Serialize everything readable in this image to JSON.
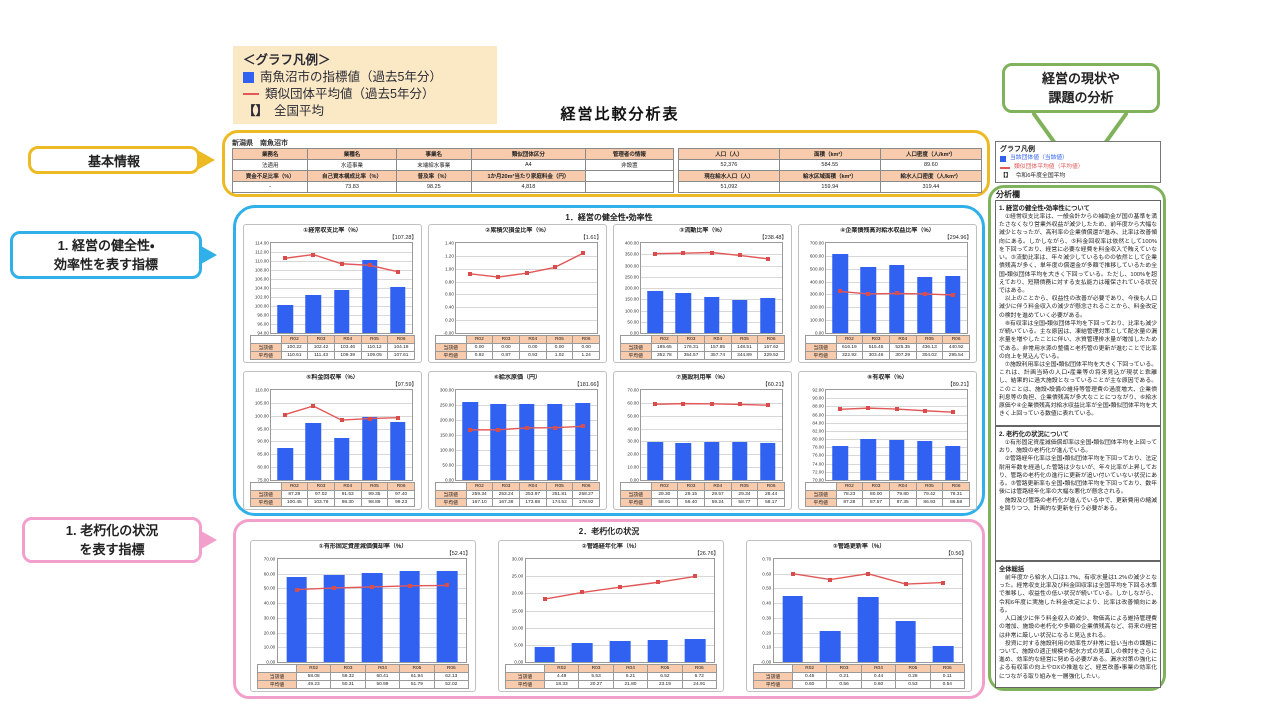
{
  "graph_legend": {
    "title": "＜グラフ凡例＞",
    "bracket_glyph": "【】",
    "items": [
      {
        "marker": "square",
        "label": "南魚沼市の指標値（過去5年分）"
      },
      {
        "marker": "line",
        "label": "類似団体平均値（過去5年分）"
      },
      {
        "marker": "bracket",
        "label": "全国平均"
      }
    ]
  },
  "callouts": {
    "basic_info": "基本情報",
    "section1_line1": "1. 経営の健全性・",
    "section1_line2": "効率性を表す指標",
    "section2_line1": "1. 老朽化の状況",
    "section2_line2": "を表す指標",
    "analysis_line1": "経営の現状や",
    "analysis_line2": "課題の分析"
  },
  "document": {
    "title": "経営比較分析表",
    "municipality": "新潟県　南魚沼市",
    "info_left": {
      "col_widths": [
        "17%",
        "20%",
        "17%",
        "26%",
        "20%"
      ],
      "rows": [
        {
          "type": "header",
          "cells": [
            "業務名",
            "業種名",
            "事業名",
            "類似団体区分",
            "管理者の情報"
          ]
        },
        {
          "type": "value",
          "cells": [
            "法適用",
            "水道事業",
            "末端給水事業",
            "A4",
            "非設置"
          ]
        },
        {
          "type": "header",
          "cells": [
            "資金不足比率（%）",
            "自己資本構成比率（%）",
            "普及率（%）",
            "1か月20m³当たり家庭料金（円）",
            ""
          ]
        },
        {
          "type": "value",
          "cells": [
            "-",
            "73.83",
            "98.25",
            "4,818",
            ""
          ]
        }
      ]
    },
    "info_right": {
      "col_widths": [
        "33.3%",
        "33.3%",
        "33.4%"
      ],
      "rows": [
        {
          "type": "header",
          "cells": [
            "人口（人）",
            "面積（km²）",
            "人口密度（人/km²）"
          ]
        },
        {
          "type": "value",
          "cells": [
            "52,376",
            "584.55",
            "89.60"
          ]
        },
        {
          "type": "header",
          "cells": [
            "現在給水人口（人）",
            "給水区域面積（km²）",
            "給水人口密度（人/km²）"
          ]
        },
        {
          "type": "value",
          "cells": [
            "51,092",
            "159.94",
            "319.44"
          ]
        }
      ]
    },
    "section1_title": "1．経営の健全性・効率性",
    "section2_title": "2．老朽化の状況"
  },
  "chart_data": [
    {
      "section": 1,
      "type": "bar",
      "title": "①経常収支比率（%）",
      "national": "107.28",
      "ymin": 94,
      "ymax": 114,
      "ystep": 2,
      "categories": [
        "R02",
        "R03",
        "R04",
        "R05",
        "R06"
      ],
      "series": [
        {
          "name": "当該値",
          "values": [
            "100.22",
            "102.42",
            "103.46",
            "110.12",
            "104.19"
          ]
        },
        {
          "name": "平均値",
          "values": [
            "110.61",
            "111.43",
            "109.39",
            "109.05",
            "107.61"
          ]
        }
      ]
    },
    {
      "section": 1,
      "type": "bar",
      "title": "②累積欠損金比率（%）",
      "national": "1.61",
      "ymin": 0,
      "ymax": 1.4,
      "ystep": 0.2,
      "categories": [
        "R02",
        "R03",
        "R04",
        "R05",
        "R06"
      ],
      "series": [
        {
          "name": "当該値",
          "values": [
            "0.00",
            "0.00",
            "0.00",
            "0.00",
            "0.00"
          ]
        },
        {
          "name": "平均値",
          "values": [
            "0.92",
            "0.87",
            "0.93",
            "1.02",
            "1.24"
          ]
        }
      ]
    },
    {
      "section": 1,
      "type": "bar",
      "title": "③流動比率（%）",
      "national": "238.48",
      "ymin": 0,
      "ymax": 400,
      "ystep": 50,
      "categories": [
        "R02",
        "R03",
        "R04",
        "R05",
        "R06"
      ],
      "series": [
        {
          "name": "当該値",
          "values": [
            "185.65",
            "176.31",
            "157.85",
            "148.51",
            "157.62"
          ]
        },
        {
          "name": "平均値",
          "values": [
            "352.78",
            "354.57",
            "357.74",
            "344.89",
            "329.52"
          ]
        }
      ]
    },
    {
      "section": 1,
      "type": "bar",
      "title": "④企業債残高対給水収益比率（%）",
      "national": "294.96",
      "ymin": 0,
      "ymax": 700,
      "ystep": 100,
      "categories": [
        "R02",
        "R03",
        "R04",
        "R05",
        "R06"
      ],
      "series": [
        {
          "name": "当該値",
          "values": [
            "616.19",
            "515.45",
            "525.35",
            "436.13",
            "440.92"
          ]
        },
        {
          "name": "平均値",
          "values": [
            "322.92",
            "303.46",
            "307.29",
            "304.02",
            "295.54"
          ]
        }
      ]
    },
    {
      "section": 1,
      "type": "bar",
      "title": "⑤料金回収率（%）",
      "national": "97.59",
      "ymin": 75,
      "ymax": 110,
      "ystep": 5,
      "categories": [
        "R02",
        "R03",
        "R04",
        "R05",
        "R06"
      ],
      "series": [
        {
          "name": "当該値",
          "values": [
            "87.29",
            "97.02",
            "91.53",
            "99.35",
            "97.40"
          ]
        },
        {
          "name": "平均値",
          "values": [
            "100.45",
            "103.79",
            "98.30",
            "98.89",
            "99.23"
          ]
        }
      ]
    },
    {
      "section": 1,
      "type": "bar",
      "title": "⑥給水原価（円）",
      "national": "181.66",
      "ymin": 0,
      "ymax": 300,
      "ystep": 50,
      "categories": [
        "R02",
        "R03",
        "R04",
        "R05",
        "R06"
      ],
      "series": [
        {
          "name": "当該値",
          "values": [
            "259.34",
            "253.24",
            "253.97",
            "251.81",
            "258.27"
          ]
        },
        {
          "name": "平均値",
          "values": [
            "167.10",
            "167.38",
            "173.68",
            "174.52",
            "178.92"
          ]
        }
      ]
    },
    {
      "section": 1,
      "type": "bar",
      "title": "⑦施設利用率（%）",
      "national": "60.21",
      "ymin": 0,
      "ymax": 70,
      "ystep": 10,
      "categories": [
        "R02",
        "R03",
        "R04",
        "R05",
        "R06"
      ],
      "series": [
        {
          "name": "当該値",
          "values": [
            "29.30",
            "29.15",
            "29.57",
            "29.34",
            "28.44"
          ]
        },
        {
          "name": "平均値",
          "values": [
            "58.91",
            "59.40",
            "59.24",
            "58.77",
            "58.17"
          ]
        }
      ]
    },
    {
      "section": 1,
      "type": "bar",
      "title": "⑧有収率（%）",
      "national": "89.21",
      "ymin": 70,
      "ymax": 92,
      "ystep": 2,
      "categories": [
        "R02",
        "R03",
        "R04",
        "R05",
        "R06"
      ],
      "series": [
        {
          "name": "当該値",
          "values": [
            "78.23",
            "80.00",
            "79.80",
            "79.42",
            "78.31"
          ]
        },
        {
          "name": "平均値",
          "values": [
            "87.28",
            "87.57",
            "87.35",
            "86.93",
            "86.58"
          ]
        }
      ]
    },
    {
      "section": 2,
      "type": "bar",
      "title": "①有形固定資産減価償却率（%）",
      "national": "52.41",
      "ymin": 0,
      "ymax": 70,
      "ystep": 10,
      "categories": [
        "R02",
        "R03",
        "R04",
        "R05",
        "R06"
      ],
      "series": [
        {
          "name": "当該値",
          "values": [
            "58.08",
            "59.32",
            "60.41",
            "61.94",
            "62.13"
          ]
        },
        {
          "name": "平均値",
          "values": [
            "49.23",
            "50.31",
            "50.99",
            "51.79",
            "52.02"
          ]
        }
      ]
    },
    {
      "section": 2,
      "type": "bar",
      "title": "②管路経年化率（%）",
      "national": "26.76",
      "ymin": 0,
      "ymax": 30,
      "ystep": 5,
      "categories": [
        "R02",
        "R03",
        "R04",
        "R05",
        "R06"
      ],
      "series": [
        {
          "name": "当該値",
          "values": [
            "4.49",
            "5.53",
            "6.21",
            "6.52",
            "6.72"
          ]
        },
        {
          "name": "平均値",
          "values": [
            "18.33",
            "20.27",
            "21.80",
            "23.19",
            "24.91"
          ]
        }
      ]
    },
    {
      "section": 2,
      "type": "bar",
      "title": "③管路更新率（%）",
      "national": "0.56",
      "ymin": 0,
      "ymax": 0.7,
      "ystep": 0.1,
      "categories": [
        "R02",
        "R03",
        "R04",
        "R05",
        "R06"
      ],
      "series": [
        {
          "name": "当該値",
          "values": [
            "0.45",
            "0.21",
            "0.44",
            "0.28",
            "0.11"
          ]
        },
        {
          "name": "平均値",
          "values": [
            "0.60",
            "0.56",
            "0.60",
            "0.53",
            "0.54"
          ]
        }
      ]
    }
  ],
  "analysis_panel": {
    "legend_title": "グラフ凡例",
    "legend_items": [
      {
        "marker": "square",
        "label": "当該団体値（当該値）",
        "color": "#3161f1"
      },
      {
        "marker": "line",
        "label": "類似団体平均値（平均値）",
        "color": "#e25858"
      },
      {
        "marker": "bracket",
        "label": "令和6年度全国平均",
        "color": "#222222"
      }
    ],
    "bracket_glyph": "【】",
    "header": "分析欄",
    "sections": [
      {
        "title": "1. 経営の健全性・効率性について",
        "body": "　①経常収支比率は、一般会計からの補助金が国の基準を満たさなくなり営業外収益が減少したため、前年度から大幅な減少となったが、高利率の企業債償還が進み、比率は改善傾向にある。しかしながら、⑤料金回収率は依然として100%を下回っており、経営に必要な経費を料金収入で賄えていない。③流動比率は、年々減少しているものの依然として企業債残高が多く、単年度の償還金が多額で推移しているため全国・類似団体平均を大きく下回っている。ただし、100%を超えており、短期債務に対する支払能力は確保されている状況ではある。\n　以上のことから、収益性の改善が必要であり、今後も人口減少に伴う料金収入の減少が懸念されることから、料金改定の検討を進めていく必要がある。\n　⑧有収率は全国・類似団体平均を下回っており、比率も減少が続いている。主な原因は、凍結管理対策として配水量の漏水量を増やしたことに伴い、水質管理排水量が増加したためである。非常用水源の整備と老朽管の更新が進むことで比率の向上を見込んでいる。\n　⑦施設利用率は全国・類似団体平均を大きく下回っている。これは、計画当時の人口・産業等の将来見込が現状と乖離し、結果的に過大施設となっていることが主な原因である。このことは、施設・設備の維持等管理費の過度増大、企業債利息等の負担、企業債残高が多大なことにつながり、⑥給水原価や④企業債残高対給水収益比率が全国・類似団体平均を大きく上回っている数値に表れている。"
      },
      {
        "title": "2. 老朽化の状況について",
        "body": "　①有形固定資産減価償却率は全国・類似団体平均を上回っており、施設の老朽化が進んでいる。\n　②管路経年化率は全国・類似団体平均を下回っており、法定耐用年数を経過した管路は少ないが、年々比率が上昇しており、管路の老朽化の進行に更新が追い付いていない状況にある。③管路更新率も全国・類似団体平均を下回っており、数年後には管路経年化率の大幅な悪化が懸念される。\n　施設及び管路の老朽化が進んでいる中で、更新費用の縮減を図りつつ、計画的な更新を行う必要がある。"
      },
      {
        "title": "全体総括",
        "body": "　前年度から給水人口は1.7%、有収水量は1.2%の減少となった。経常収支比率及び料金回収率は全国平均を下回る水準で推移し、収益性の低い状況が続いている。しかしながら、令和6年度に実施した料金改定により、比率は改善傾向にある。\n　人口減少に伴う料金収入の減少、物価高による維持管理費の増加、施設の老朽化や多額の企業債残高など、将来の経営は非常に厳しい状況になると見込まれる。\n　投資に対する施設利用の効率性が非常に低い当市の課題について、施設の適正規模や配水方式の見直しの検討をさらに進め、効率的な経営に努める必要がある。漏水対策の強化による有収率の向上やDXの推進など、経営改善・事業の効率化につながる取り組みを一層強化したい。"
      }
    ]
  },
  "colors": {
    "bar": "#3161f1",
    "line": "#e25858",
    "callout_yellow": "#edba24",
    "callout_blue": "#2fb0e8",
    "callout_pink": "#f2a0cb",
    "callout_green": "#7fb25a",
    "legend_bg": "#fbe9c6",
    "table_header_bg": "#f8cbad"
  }
}
